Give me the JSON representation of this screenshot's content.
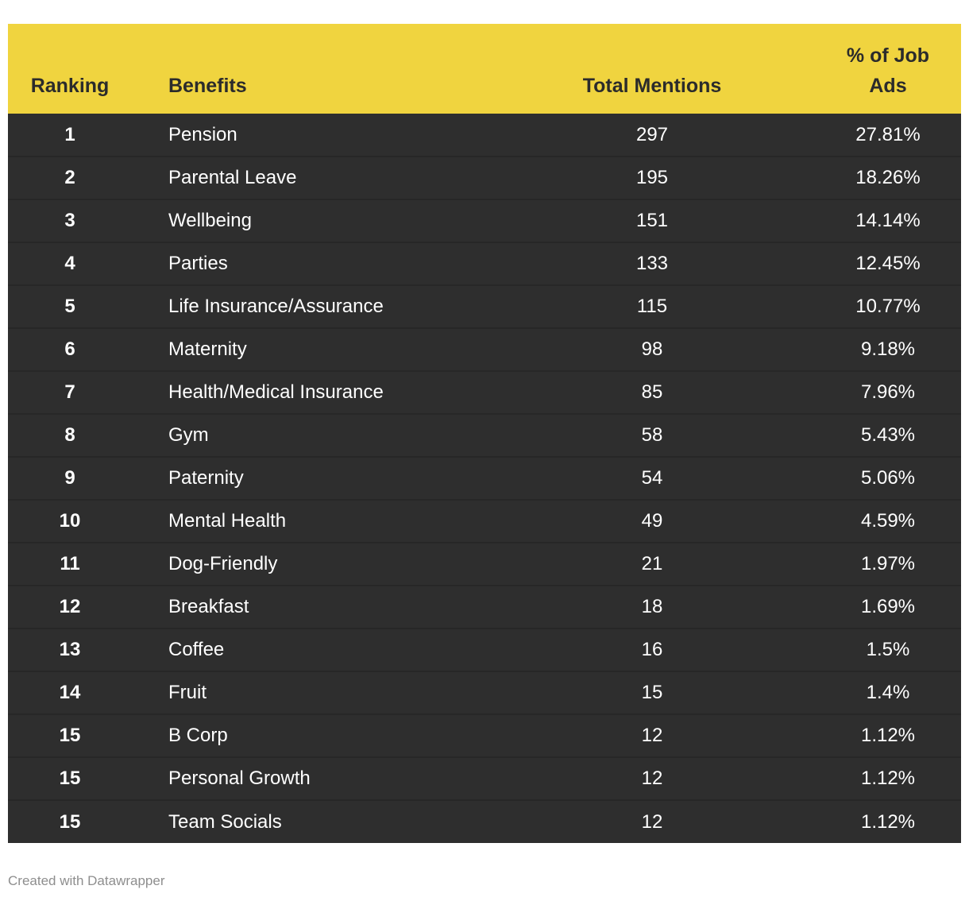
{
  "chart_data": {
    "type": "table",
    "columns": [
      "Ranking",
      "Benefits",
      "Total Mentions",
      "% of Job Ads"
    ],
    "rows": [
      [
        "1",
        "Pension",
        "297",
        "27.81%"
      ],
      [
        "2",
        "Parental Leave",
        "195",
        "18.26%"
      ],
      [
        "3",
        "Wellbeing",
        "151",
        "14.14%"
      ],
      [
        "4",
        "Parties",
        "133",
        "12.45%"
      ],
      [
        "5",
        "Life Insurance/Assurance",
        "115",
        "10.77%"
      ],
      [
        "6",
        "Maternity",
        "98",
        "9.18%"
      ],
      [
        "7",
        "Health/Medical Insurance",
        "85",
        "7.96%"
      ],
      [
        "8",
        "Gym",
        "58",
        "5.43%"
      ],
      [
        "9",
        "Paternity",
        "54",
        "5.06%"
      ],
      [
        "10",
        "Mental Health",
        "49",
        "4.59%"
      ],
      [
        "11",
        "Dog-Friendly",
        "21",
        "1.97%"
      ],
      [
        "12",
        "Breakfast",
        "18",
        "1.69%"
      ],
      [
        "13",
        "Coffee",
        "16",
        "1.5%"
      ],
      [
        "14",
        "Fruit",
        "15",
        "1.4%"
      ],
      [
        "15",
        "B Corp",
        "12",
        "1.12%"
      ],
      [
        "15",
        "Personal Growth",
        "12",
        "1.12%"
      ],
      [
        "15",
        "Team Socials",
        "12",
        "1.12%"
      ]
    ],
    "layout": {
      "header_align": [
        "center",
        "left",
        "center",
        "center"
      ],
      "body_align": [
        "center",
        "left",
        "center",
        "center"
      ],
      "grid": "horizontal-dividers",
      "legend_position": "none"
    }
  },
  "footer": {
    "attribution": "Created with Datawrapper"
  },
  "colors": {
    "header_bg": "#F0D43F",
    "header_text": "#2B2B2B",
    "row_bg": "#2E2E2E",
    "row_divider": "#272727",
    "row_text": "#FFFFFF",
    "attribution_text": "#8E8E8E",
    "page_bg": "#FFFFFF"
  }
}
